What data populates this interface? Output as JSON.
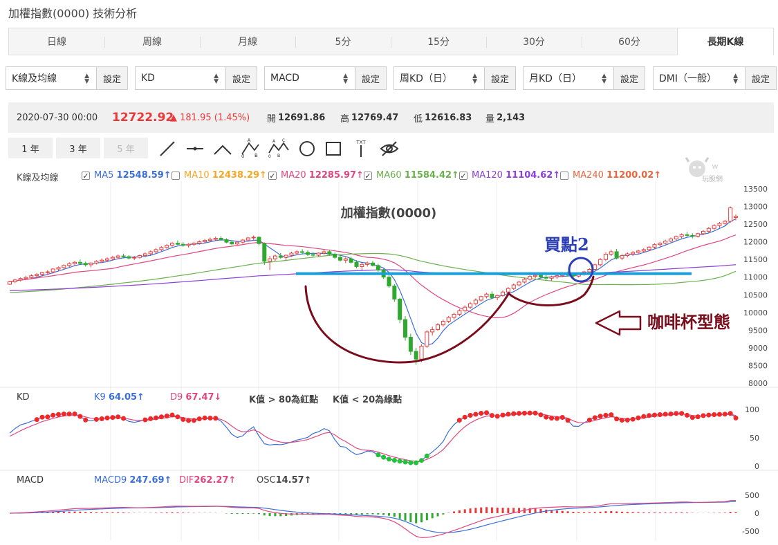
{
  "page": {
    "title": "加權指數(0000) 技術分析"
  },
  "tabs": [
    "日線",
    "周線",
    "月線",
    "5分",
    "15分",
    "30分",
    "60分",
    "長期K線"
  ],
  "active_tab": 7,
  "selectors": [
    {
      "value": "K線及均線",
      "button": "設定"
    },
    {
      "value": "KD",
      "button": "設定"
    },
    {
      "value": "MACD",
      "button": "設定"
    },
    {
      "value": "周KD（日）",
      "button": "設定"
    },
    {
      "value": "月KD（日）",
      "button": "設定"
    },
    {
      "value": "DMI（一般）",
      "button": "設定"
    }
  ],
  "quote": {
    "date": "2020-07-30 00:00",
    "price": "12722.92",
    "change": "▲ 181.95 (1.45%)",
    "open_label": "開",
    "open": "12691.86",
    "high_label": "高",
    "high": "12769.47",
    "low_label": "低",
    "low": "12616.83",
    "volume_label": "量",
    "volume": "2,143"
  },
  "year_buttons": [
    "1 年",
    "3 年",
    "5 年"
  ],
  "tool_icons": [
    "line-tool-icon",
    "horizontal-line-tool-icon",
    "angle-tool-icon",
    "abc-pattern-tool-icon",
    "abcd-pattern-tool-icon",
    "circle-tool-icon",
    "rectangle-tool-icon",
    "text-tool-icon",
    "hide-drawings-icon"
  ],
  "tool_text": {
    "abc": "A B C 0",
    "abcd": "A B C D 0",
    "txt": "TXT"
  },
  "ma_legend": {
    "title": "K線及均線",
    "items": [
      {
        "name": "MA5",
        "value": "12548.59↑",
        "checked": true,
        "color": "#3a6fd8"
      },
      {
        "name": "MA10",
        "value": "12438.29↑",
        "checked": false,
        "color": "#f5a623"
      },
      {
        "name": "MA20",
        "value": "12285.97↑",
        "checked": true,
        "color": "#e0467f"
      },
      {
        "name": "MA60",
        "value": "11584.42↑",
        "checked": true,
        "color": "#6ab04c"
      },
      {
        "name": "MA120",
        "value": "11104.62↑",
        "checked": true,
        "color": "#8b3fd9"
      },
      {
        "name": "MA240",
        "value": "11200.02↑",
        "checked": false,
        "color": "#e8663d"
      }
    ]
  },
  "brand": {
    "text": "玩股網"
  },
  "kd": {
    "title": "KD",
    "k_label": "K9",
    "k_value": "64.05↑",
    "d_label": "D9",
    "d_value": "67.47↓",
    "note1": "K值 > 80為紅點",
    "note2": "K值 < 20為綠點"
  },
  "macd": {
    "title": "MACD",
    "macd_label": "MACD9",
    "macd_value": "247.69↑",
    "dif_label": "DIF",
    "dif_value": "262.27↑",
    "osc_label": "OSC",
    "osc_value": "14.57↑"
  },
  "colors": {
    "up": "#e83a3a",
    "down": "#2ea82e",
    "ma5": "#3a6fd8",
    "ma20": "#e0467f",
    "ma60": "#6ab04c",
    "ma120": "#8b3fd9",
    "annot": "#7a0d1c",
    "neckline": "#1a9ed9",
    "buy_circle": "#2b3fb8"
  },
  "chart_data": {
    "type": "candlestick",
    "title": "加權指數(0000)",
    "annotations": {
      "buy_point": "買點2",
      "pattern": "咖啡杯型態"
    },
    "price_axis": {
      "min": 8000,
      "max": 13500,
      "ticks": [
        13500,
        13000,
        12500,
        12000,
        11500,
        11000,
        10500,
        10000,
        9500,
        9000,
        8500,
        8000
      ]
    },
    "kd_axis": {
      "ticks": [
        100,
        50,
        0
      ]
    },
    "macd_axis": {
      "ticks": [
        500,
        0,
        -500
      ]
    },
    "neckline_value": 11100,
    "ohlc": [
      [
        10800,
        10900,
        10780,
        10870
      ],
      [
        10870,
        10950,
        10830,
        10920
      ],
      [
        10920,
        10990,
        10880,
        10960
      ],
      [
        10960,
        11040,
        10920,
        10990
      ],
      [
        10990,
        11080,
        10950,
        11040
      ],
      [
        11040,
        11120,
        10980,
        11080
      ],
      [
        11080,
        11150,
        11020,
        11130
      ],
      [
        11130,
        11200,
        11060,
        11150
      ],
      [
        11150,
        11250,
        11100,
        11230
      ],
      [
        11230,
        11300,
        11180,
        11270
      ],
      [
        11270,
        11360,
        11230,
        11330
      ],
      [
        11330,
        11420,
        11280,
        11380
      ],
      [
        11380,
        11460,
        11320,
        11420
      ],
      [
        11420,
        11500,
        11350,
        11390
      ],
      [
        11390,
        11440,
        11300,
        11350
      ],
      [
        11350,
        11420,
        11280,
        11400
      ],
      [
        11400,
        11480,
        11360,
        11450
      ],
      [
        11450,
        11530,
        11400,
        11480
      ],
      [
        11480,
        11560,
        11440,
        11520
      ],
      [
        11520,
        11600,
        11470,
        11560
      ],
      [
        11560,
        11640,
        11510,
        11600
      ],
      [
        11600,
        11660,
        11540,
        11580
      ],
      [
        11580,
        11620,
        11500,
        11540
      ],
      [
        11540,
        11600,
        11480,
        11560
      ],
      [
        11560,
        11640,
        11520,
        11610
      ],
      [
        11610,
        11700,
        11570,
        11660
      ],
      [
        11660,
        11760,
        11620,
        11720
      ],
      [
        11720,
        11820,
        11680,
        11780
      ],
      [
        11780,
        11880,
        11740,
        11840
      ],
      [
        11840,
        11940,
        11800,
        11900
      ],
      [
        11900,
        11990,
        11860,
        11960
      ],
      [
        11960,
        12040,
        11900,
        11930
      ],
      [
        11930,
        11990,
        11860,
        11900
      ],
      [
        11900,
        11960,
        11840,
        11930
      ],
      [
        11930,
        12000,
        11880,
        11960
      ],
      [
        11960,
        12040,
        11920,
        12000
      ],
      [
        12000,
        12080,
        11960,
        12040
      ],
      [
        12040,
        12120,
        11990,
        12070
      ],
      [
        12070,
        12150,
        12020,
        12100
      ],
      [
        12100,
        12160,
        12030,
        12060
      ],
      [
        12060,
        12100,
        11960,
        11990
      ],
      [
        11990,
        12040,
        11900,
        11940
      ],
      [
        11940,
        12020,
        11890,
        11990
      ],
      [
        11990,
        12080,
        11950,
        12050
      ],
      [
        12050,
        12140,
        12010,
        12110
      ],
      [
        12110,
        12180,
        12060,
        12130
      ],
      [
        12130,
        12160,
        11900,
        11950
      ],
      [
        11950,
        11980,
        11350,
        11450
      ],
      [
        11450,
        11600,
        11200,
        11520
      ],
      [
        11520,
        11640,
        11460,
        11600
      ],
      [
        11600,
        11680,
        11520,
        11560
      ],
      [
        11560,
        11640,
        11480,
        11620
      ],
      [
        11620,
        11720,
        11570,
        11680
      ],
      [
        11680,
        11760,
        11630,
        11720
      ],
      [
        11720,
        11790,
        11660,
        11700
      ],
      [
        11700,
        11760,
        11600,
        11640
      ],
      [
        11640,
        11700,
        11560,
        11620
      ],
      [
        11620,
        11700,
        11580,
        11680
      ],
      [
        11680,
        11760,
        11640,
        11720
      ],
      [
        11720,
        11780,
        11620,
        11650
      ],
      [
        11650,
        11700,
        11520,
        11560
      ],
      [
        11560,
        11620,
        11440,
        11480
      ],
      [
        11480,
        11560,
        11400,
        11520
      ],
      [
        11520,
        11580,
        11380,
        11420
      ],
      [
        11420,
        11480,
        11250,
        11300
      ],
      [
        11300,
        11400,
        11200,
        11360
      ],
      [
        11360,
        11440,
        11300,
        11400
      ],
      [
        11400,
        11460,
        11300,
        11330
      ],
      [
        11330,
        11380,
        11150,
        11200
      ],
      [
        11200,
        11260,
        10950,
        11000
      ],
      [
        11000,
        11080,
        10700,
        10750
      ],
      [
        10750,
        10800,
        10300,
        10380
      ],
      [
        10380,
        10420,
        9700,
        9800
      ],
      [
        9800,
        9900,
        9200,
        9300
      ],
      [
        9300,
        9400,
        8800,
        8900
      ],
      [
        8900,
        9000,
        8520,
        8680
      ],
      [
        8680,
        9100,
        8600,
        9050
      ],
      [
        9050,
        9500,
        9000,
        9450
      ],
      [
        9450,
        9600,
        9350,
        9520
      ],
      [
        9520,
        9700,
        9480,
        9650
      ],
      [
        9650,
        9800,
        9600,
        9750
      ],
      [
        9750,
        9900,
        9700,
        9860
      ],
      [
        9860,
        10000,
        9800,
        9950
      ],
      [
        9950,
        10100,
        9900,
        10050
      ],
      [
        10050,
        10200,
        10000,
        10150
      ],
      [
        10150,
        10300,
        10100,
        10250
      ],
      [
        10250,
        10400,
        10200,
        10350
      ],
      [
        10350,
        10480,
        10300,
        10450
      ],
      [
        10450,
        10560,
        10400,
        10520
      ],
      [
        10520,
        10600,
        10380,
        10420
      ],
      [
        10420,
        10500,
        10350,
        10480
      ],
      [
        10480,
        10620,
        10440,
        10580
      ],
      [
        10580,
        10720,
        10540,
        10680
      ],
      [
        10680,
        10820,
        10640,
        10780
      ],
      [
        10780,
        10900,
        10740,
        10860
      ],
      [
        10860,
        10980,
        10820,
        10940
      ],
      [
        10940,
        11060,
        10900,
        11020
      ],
      [
        11020,
        11100,
        10960,
        11050
      ],
      [
        11050,
        11120,
        10980,
        11000
      ],
      [
        11000,
        11060,
        10920,
        10970
      ],
      [
        10970,
        11040,
        10900,
        11010
      ],
      [
        11010,
        11080,
        10950,
        11040
      ],
      [
        11040,
        11120,
        11000,
        11080
      ],
      [
        11080,
        11160,
        11020,
        11060
      ],
      [
        11060,
        11120,
        10980,
        11030
      ],
      [
        11030,
        11100,
        10990,
        11080
      ],
      [
        11080,
        11180,
        11040,
        11150
      ],
      [
        11150,
        11250,
        11100,
        11220
      ],
      [
        11220,
        11380,
        11180,
        11350
      ],
      [
        11350,
        11540,
        11300,
        11500
      ],
      [
        11500,
        11700,
        11450,
        11650
      ],
      [
        11650,
        11780,
        11600,
        11720
      ],
      [
        11720,
        11800,
        11500,
        11540
      ],
      [
        11540,
        11650,
        11480,
        11610
      ],
      [
        11610,
        11700,
        11560,
        11660
      ],
      [
        11660,
        11740,
        11600,
        11700
      ],
      [
        11700,
        11780,
        11650,
        11740
      ],
      [
        11740,
        11820,
        11690,
        11780
      ],
      [
        11780,
        11880,
        11740,
        11850
      ],
      [
        11850,
        11960,
        11800,
        11920
      ],
      [
        11920,
        12000,
        11860,
        11960
      ],
      [
        11960,
        12060,
        11920,
        12020
      ],
      [
        12020,
        12120,
        11980,
        12080
      ],
      [
        12080,
        12180,
        12040,
        12150
      ],
      [
        12150,
        12240,
        12100,
        12200
      ],
      [
        12200,
        12280,
        12140,
        12180
      ],
      [
        12180,
        12240,
        12100,
        12160
      ],
      [
        12160,
        12260,
        12120,
        12230
      ],
      [
        12230,
        12330,
        12190,
        12300
      ],
      [
        12300,
        12420,
        12260,
        12380
      ],
      [
        12380,
        12500,
        12340,
        12460
      ],
      [
        12460,
        12560,
        12400,
        12520
      ],
      [
        12520,
        12620,
        12460,
        12580
      ],
      [
        12580,
        13000,
        12540,
        12960
      ],
      [
        12690,
        12770,
        12610,
        12720
      ]
    ]
  }
}
